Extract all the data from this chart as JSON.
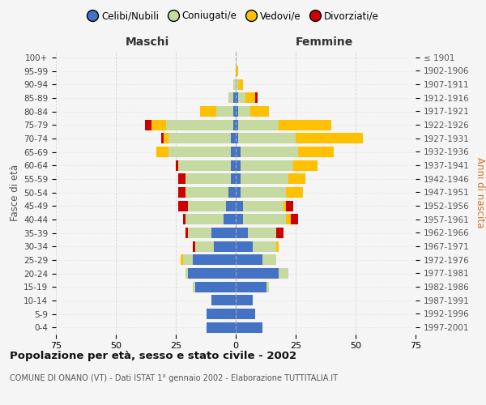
{
  "age_groups": [
    "0-4",
    "5-9",
    "10-14",
    "15-19",
    "20-24",
    "25-29",
    "30-34",
    "35-39",
    "40-44",
    "45-49",
    "50-54",
    "55-59",
    "60-64",
    "65-69",
    "70-74",
    "75-79",
    "80-84",
    "85-89",
    "90-94",
    "95-99",
    "100+"
  ],
  "birth_years": [
    "1997-2001",
    "1992-1996",
    "1987-1991",
    "1982-1986",
    "1977-1981",
    "1972-1976",
    "1967-1971",
    "1962-1966",
    "1957-1961",
    "1952-1956",
    "1947-1951",
    "1942-1946",
    "1937-1941",
    "1932-1936",
    "1927-1931",
    "1922-1926",
    "1917-1921",
    "1912-1916",
    "1907-1911",
    "1902-1906",
    "≤ 1901"
  ],
  "maschi": {
    "celibi": [
      12,
      12,
      10,
      17,
      20,
      18,
      9,
      10,
      5,
      4,
      3,
      2,
      2,
      2,
      2,
      1,
      1,
      1,
      0,
      0,
      0
    ],
    "coniugati": [
      0,
      0,
      0,
      1,
      1,
      4,
      8,
      10,
      16,
      16,
      18,
      19,
      22,
      26,
      26,
      28,
      7,
      2,
      1,
      0,
      0
    ],
    "vedovi": [
      0,
      0,
      0,
      0,
      0,
      1,
      0,
      0,
      0,
      0,
      0,
      0,
      0,
      5,
      2,
      6,
      7,
      0,
      0,
      0,
      0
    ],
    "divorziati": [
      0,
      0,
      0,
      0,
      0,
      0,
      1,
      1,
      1,
      4,
      3,
      3,
      1,
      0,
      1,
      3,
      0,
      0,
      0,
      0,
      0
    ]
  },
  "femmine": {
    "nubili": [
      11,
      8,
      7,
      13,
      18,
      11,
      7,
      5,
      3,
      3,
      2,
      2,
      2,
      2,
      1,
      1,
      1,
      1,
      0,
      0,
      0
    ],
    "coniugate": [
      0,
      0,
      0,
      1,
      4,
      6,
      10,
      12,
      18,
      17,
      19,
      20,
      22,
      24,
      24,
      17,
      5,
      3,
      1,
      0,
      0
    ],
    "vedove": [
      0,
      0,
      0,
      0,
      0,
      0,
      1,
      0,
      2,
      1,
      7,
      7,
      10,
      15,
      28,
      22,
      8,
      4,
      2,
      1,
      0
    ],
    "divorziate": [
      0,
      0,
      0,
      0,
      0,
      0,
      0,
      3,
      3,
      3,
      0,
      0,
      0,
      0,
      0,
      0,
      0,
      1,
      0,
      0,
      0
    ]
  },
  "color_celibi": "#4472c4",
  "color_coniugati": "#c5d9a0",
  "color_vedovi": "#ffc000",
  "color_divorziati": "#cc0000",
  "xlim": 75,
  "title": "Popolazione per età, sesso e stato civile - 2002",
  "subtitle": "COMUNE DI ONANO (VT) - Dati ISTAT 1° gennaio 2002 - Elaborazione TUTTITALIA.IT",
  "ylabel": "Fasce di età",
  "ylabel_right": "Anni di nascita",
  "label_maschi": "Maschi",
  "label_femmine": "Femmine",
  "bg_color": "#f5f5f5",
  "grid_color": "#cccccc",
  "legend_labels": [
    "Celibi/Nubili",
    "Coniugati/e",
    "Vedovi/e",
    "Divorziati/e"
  ]
}
